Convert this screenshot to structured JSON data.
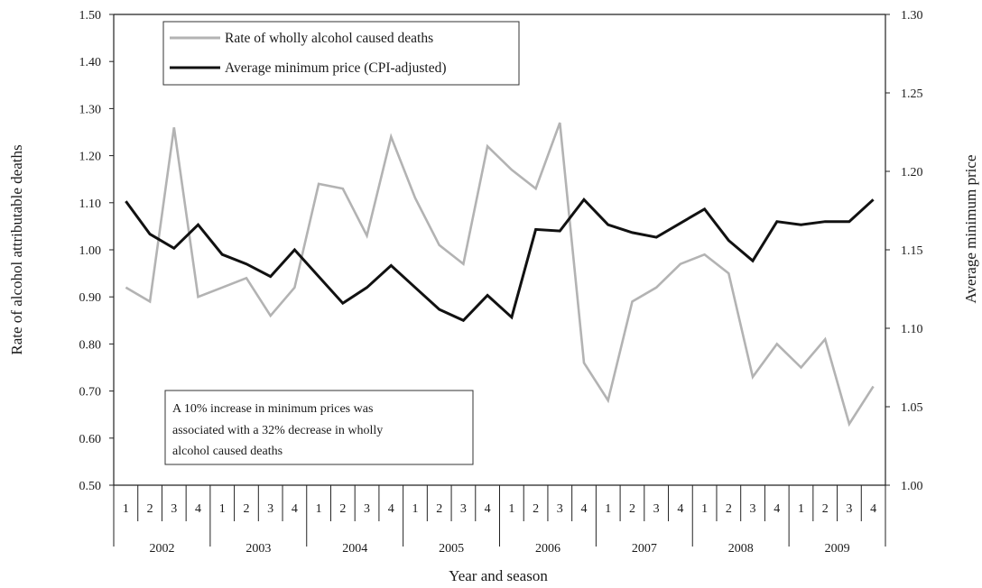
{
  "chart_data": {
    "type": "line",
    "xlabel": "Year and season",
    "ylabel_left": "Rate of alcohol attributable deaths",
    "ylabel_right": "Average minimum price",
    "ylim_left": [
      0.5,
      1.5
    ],
    "ylim_right": [
      1.0,
      1.3
    ],
    "yticks_left": [
      "0.50",
      "0.60",
      "0.70",
      "0.80",
      "0.90",
      "1.00",
      "1.10",
      "1.20",
      "1.30",
      "1.40",
      "1.50"
    ],
    "yticks_right": [
      "1.00",
      "1.05",
      "1.10",
      "1.15",
      "1.20",
      "1.25",
      "1.30"
    ],
    "seasons": [
      "1",
      "2",
      "3",
      "4"
    ],
    "years": [
      "2002",
      "2003",
      "2004",
      "2005",
      "2006",
      "2007",
      "2008",
      "2009"
    ],
    "legend_placement": "top-left",
    "grid": false,
    "annotation": {
      "lines": [
        "A 10% increase in minimum prices was",
        "associated with a 32% decrease in wholly",
        "alcohol caused deaths"
      ]
    },
    "series": [
      {
        "name": "Rate of wholly alcohol caused deaths",
        "axis": "left",
        "color": "#b3b3b3",
        "values": [
          0.92,
          0.89,
          1.26,
          0.9,
          0.92,
          0.94,
          0.86,
          0.92,
          1.14,
          1.13,
          1.03,
          1.24,
          1.11,
          1.01,
          0.97,
          1.22,
          1.17,
          1.13,
          1.27,
          0.76,
          0.68,
          0.89,
          0.92,
          0.97,
          0.99,
          0.95,
          0.73,
          0.8,
          0.75,
          0.81,
          0.63,
          0.71
        ]
      },
      {
        "name": "Average minimum price (CPI-adjusted)",
        "axis": "right",
        "color": "#111111",
        "values": [
          1.181,
          1.16,
          1.151,
          1.166,
          1.147,
          1.141,
          1.133,
          1.15,
          1.133,
          1.116,
          1.126,
          1.14,
          1.126,
          1.112,
          1.105,
          1.121,
          1.107,
          1.163,
          1.162,
          1.182,
          1.166,
          1.161,
          1.158,
          1.167,
          1.176,
          1.156,
          1.143,
          1.168,
          1.166,
          1.168,
          1.168,
          1.182
        ]
      }
    ]
  }
}
